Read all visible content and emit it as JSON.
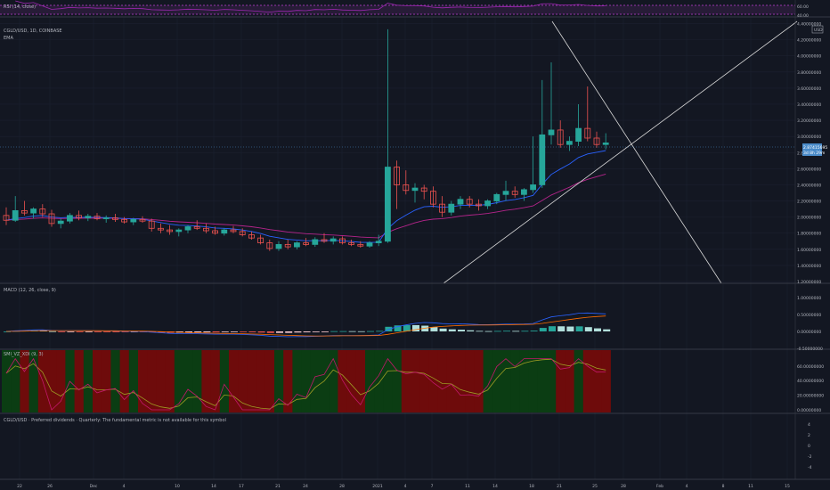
{
  "colors": {
    "background": "#131722",
    "up": "#26a69a",
    "down": "#ef5350",
    "grid": "#1c2030",
    "rsi_line": "#9c27b0",
    "rsi_band": "#c03fd6",
    "ema": "#2962ff",
    "ma": "#b5248b",
    "trendline": "#d9d9d9",
    "macd_line": "#2962ff",
    "signal_line": "#ff6d00",
    "hist_pos": "#26a69a",
    "hist_pos_light": "#b2dfdb",
    "hist_neg": "#ef5350",
    "hist_neg_light": "#ffcdd2",
    "current_price_bg": "#4a8bc9",
    "stoch_green": "#0b3d13",
    "stoch_red": "#6e0b0b",
    "stoch_k": "#c2186b",
    "stoch_d": "#9e9d24"
  },
  "panes": {
    "rsi": {
      "label": "RSI (14, close)",
      "ticks": [
        "60.00",
        "40.00"
      ]
    },
    "main": {
      "symbol_label": "CGLD/USD, 1D, COINBASE",
      "indicator_label": "EMA",
      "currency_badge": "USD",
      "price_ticks": [
        "4.40000000",
        "4.20000000",
        "4.00000000",
        "3.80000000",
        "3.60000000",
        "3.40000000",
        "3.20000000",
        "3.00000000",
        "2.80000000",
        "2.60000000",
        "2.40000000",
        "2.20000000",
        "2.00000000",
        "1.80000000",
        "1.60000000",
        "1.40000000",
        "1.20000000"
      ],
      "current_price": "2.87415695",
      "countdown": "3d 8h 29m"
    },
    "macd": {
      "label": "MACD (12, 26, close, 9)",
      "ticks": [
        "1.00000000",
        "0.50000000",
        "0.00000000",
        "-0.50000000"
      ]
    },
    "stoch": {
      "label": "SMI_VZ_XDI (9, 3)",
      "ticks": [
        "60.00000000",
        "40.00000000",
        "20.00000000",
        "0.00000000"
      ]
    },
    "dividends": {
      "label": "CGLD/USD · Preferred dividends · Quarterly: The fundamental metric is not available for this symbol",
      "ticks": [
        "4",
        "2",
        "0",
        "-2",
        "-4"
      ]
    }
  },
  "time_axis": {
    "labels": [
      "22",
      "26",
      "Dec",
      "4",
      "10",
      "14",
      "17",
      "21",
      "24",
      "28",
      "2021",
      "4",
      "7",
      "11",
      "14",
      "18",
      "21",
      "25",
      "28",
      "Feb",
      "4",
      "8",
      "11",
      "15"
    ]
  },
  "chart_data": {
    "type": "candlestick",
    "price_range": [
      1.2,
      4.45
    ],
    "candles": [
      {
        "o": 2.02,
        "h": 2.12,
        "l": 1.9,
        "c": 1.96
      },
      {
        "o": 1.96,
        "h": 2.26,
        "l": 1.94,
        "c": 2.08
      },
      {
        "o": 2.08,
        "h": 2.2,
        "l": 2.02,
        "c": 2.05
      },
      {
        "o": 2.05,
        "h": 2.12,
        "l": 1.98,
        "c": 2.1
      },
      {
        "o": 2.1,
        "h": 2.16,
        "l": 2.0,
        "c": 2.04
      },
      {
        "o": 2.04,
        "h": 2.09,
        "l": 1.88,
        "c": 1.92
      },
      {
        "o": 1.92,
        "h": 1.98,
        "l": 1.86,
        "c": 1.95
      },
      {
        "o": 1.95,
        "h": 2.05,
        "l": 1.92,
        "c": 2.02
      },
      {
        "o": 2.02,
        "h": 2.08,
        "l": 1.96,
        "c": 1.99
      },
      {
        "o": 1.99,
        "h": 2.04,
        "l": 1.95,
        "c": 2.01
      },
      {
        "o": 2.01,
        "h": 2.05,
        "l": 1.96,
        "c": 1.98
      },
      {
        "o": 1.98,
        "h": 2.02,
        "l": 1.93,
        "c": 1.99
      },
      {
        "o": 1.99,
        "h": 2.04,
        "l": 1.94,
        "c": 1.97
      },
      {
        "o": 1.97,
        "h": 2.0,
        "l": 1.92,
        "c": 1.94
      },
      {
        "o": 1.94,
        "h": 1.99,
        "l": 1.9,
        "c": 1.97
      },
      {
        "o": 1.97,
        "h": 2.01,
        "l": 1.93,
        "c": 1.95
      },
      {
        "o": 1.95,
        "h": 1.98,
        "l": 1.82,
        "c": 1.86
      },
      {
        "o": 1.86,
        "h": 1.92,
        "l": 1.8,
        "c": 1.84
      },
      {
        "o": 1.84,
        "h": 1.9,
        "l": 1.78,
        "c": 1.82
      },
      {
        "o": 1.82,
        "h": 1.86,
        "l": 1.76,
        "c": 1.84
      },
      {
        "o": 1.84,
        "h": 1.9,
        "l": 1.8,
        "c": 1.88
      },
      {
        "o": 1.88,
        "h": 1.96,
        "l": 1.84,
        "c": 1.86
      },
      {
        "o": 1.86,
        "h": 1.92,
        "l": 1.8,
        "c": 1.83
      },
      {
        "o": 1.83,
        "h": 1.88,
        "l": 1.78,
        "c": 1.8
      },
      {
        "o": 1.8,
        "h": 1.86,
        "l": 1.77,
        "c": 1.84
      },
      {
        "o": 1.84,
        "h": 1.89,
        "l": 1.8,
        "c": 1.82
      },
      {
        "o": 1.82,
        "h": 1.86,
        "l": 1.76,
        "c": 1.78
      },
      {
        "o": 1.78,
        "h": 1.82,
        "l": 1.72,
        "c": 1.74
      },
      {
        "o": 1.74,
        "h": 1.78,
        "l": 1.66,
        "c": 1.68
      },
      {
        "o": 1.68,
        "h": 1.72,
        "l": 1.58,
        "c": 1.61
      },
      {
        "o": 1.61,
        "h": 1.7,
        "l": 1.58,
        "c": 1.66
      },
      {
        "o": 1.66,
        "h": 1.72,
        "l": 1.6,
        "c": 1.63
      },
      {
        "o": 1.63,
        "h": 1.7,
        "l": 1.6,
        "c": 1.68
      },
      {
        "o": 1.68,
        "h": 1.74,
        "l": 1.64,
        "c": 1.66
      },
      {
        "o": 1.66,
        "h": 1.75,
        "l": 1.63,
        "c": 1.72
      },
      {
        "o": 1.72,
        "h": 1.8,
        "l": 1.68,
        "c": 1.7
      },
      {
        "o": 1.7,
        "h": 1.76,
        "l": 1.66,
        "c": 1.73
      },
      {
        "o": 1.73,
        "h": 1.76,
        "l": 1.66,
        "c": 1.68
      },
      {
        "o": 1.68,
        "h": 1.72,
        "l": 1.64,
        "c": 1.66
      },
      {
        "o": 1.66,
        "h": 1.7,
        "l": 1.62,
        "c": 1.64
      },
      {
        "o": 1.64,
        "h": 1.7,
        "l": 1.62,
        "c": 1.68
      },
      {
        "o": 1.68,
        "h": 1.78,
        "l": 1.64,
        "c": 1.7
      },
      {
        "o": 1.7,
        "h": 4.33,
        "l": 1.68,
        "c": 2.62
      },
      {
        "o": 2.62,
        "h": 2.7,
        "l": 2.1,
        "c": 2.4
      },
      {
        "o": 2.4,
        "h": 2.58,
        "l": 2.28,
        "c": 2.33
      },
      {
        "o": 2.33,
        "h": 2.42,
        "l": 2.18,
        "c": 2.36
      },
      {
        "o": 2.36,
        "h": 2.4,
        "l": 2.22,
        "c": 2.32
      },
      {
        "o": 2.32,
        "h": 2.38,
        "l": 2.12,
        "c": 2.16
      },
      {
        "o": 2.16,
        "h": 2.26,
        "l": 2.0,
        "c": 2.06
      },
      {
        "o": 2.06,
        "h": 2.2,
        "l": 2.02,
        "c": 2.16
      },
      {
        "o": 2.16,
        "h": 2.26,
        "l": 2.1,
        "c": 2.22
      },
      {
        "o": 2.22,
        "h": 2.26,
        "l": 2.12,
        "c": 2.16
      },
      {
        "o": 2.16,
        "h": 2.22,
        "l": 2.08,
        "c": 2.14
      },
      {
        "o": 2.14,
        "h": 2.22,
        "l": 2.1,
        "c": 2.2
      },
      {
        "o": 2.2,
        "h": 2.3,
        "l": 2.16,
        "c": 2.28
      },
      {
        "o": 2.28,
        "h": 2.45,
        "l": 2.2,
        "c": 2.32
      },
      {
        "o": 2.32,
        "h": 2.38,
        "l": 2.24,
        "c": 2.28
      },
      {
        "o": 2.28,
        "h": 2.36,
        "l": 2.2,
        "c": 2.34
      },
      {
        "o": 2.34,
        "h": 3.0,
        "l": 2.3,
        "c": 2.4
      },
      {
        "o": 2.4,
        "h": 3.7,
        "l": 2.36,
        "c": 3.02
      },
      {
        "o": 3.02,
        "h": 3.92,
        "l": 2.9,
        "c": 3.08
      },
      {
        "o": 3.08,
        "h": 3.2,
        "l": 2.86,
        "c": 2.9
      },
      {
        "o": 2.9,
        "h": 3.0,
        "l": 2.82,
        "c": 2.94
      },
      {
        "o": 2.94,
        "h": 3.4,
        "l": 2.88,
        "c": 3.1
      },
      {
        "o": 3.1,
        "h": 3.62,
        "l": 2.94,
        "c": 2.98
      },
      {
        "o": 2.98,
        "h": 3.06,
        "l": 2.86,
        "c": 2.9
      },
      {
        "o": 2.9,
        "h": 3.04,
        "l": 2.84,
        "c": 2.92
      }
    ]
  }
}
